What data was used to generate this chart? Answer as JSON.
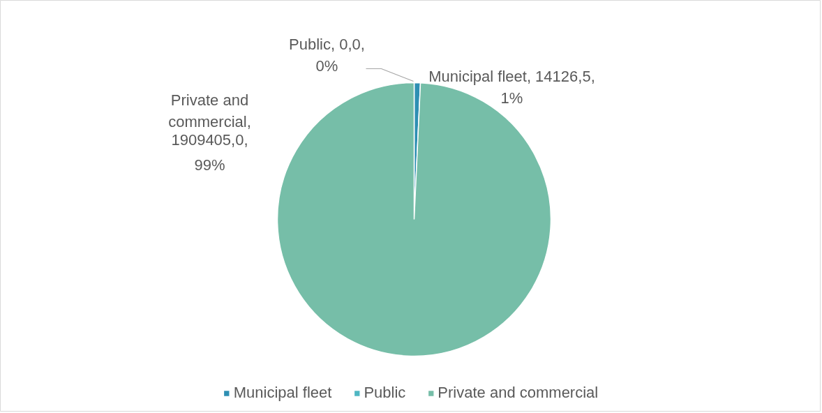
{
  "chart_data": {
    "type": "pie",
    "categories": [
      "Municipal fleet",
      "Public",
      "Private and commercial"
    ],
    "values": [
      14126.5,
      0.0,
      1909405.0
    ],
    "colors": [
      "#2e8fb3",
      "#4fb7c3",
      "#76bea8"
    ],
    "value_labels": [
      "Municipal fleet, 14126,5, 1%",
      "Public, 0,0, 0%",
      "Private and commercial, 1909405,0, 99%"
    ],
    "legend": "bottom"
  }
}
